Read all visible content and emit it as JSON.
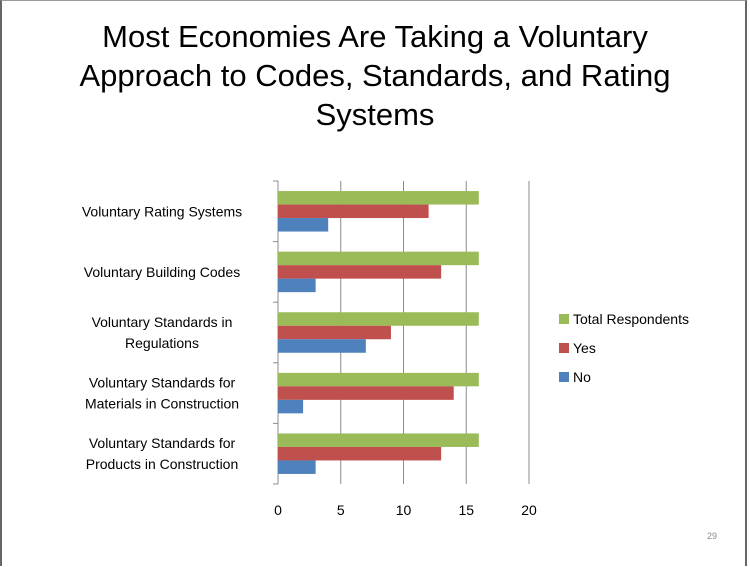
{
  "slide": {
    "title_line1": "Most Economies Are Taking a Voluntary",
    "title_line2": "Approach to Codes, Standards, and Rating",
    "title_line3": "Systems",
    "page_number": "29"
  },
  "chart_data": {
    "type": "bar",
    "orientation": "horizontal",
    "title": "",
    "xlabel": "",
    "ylabel": "",
    "xlim": [
      0,
      20
    ],
    "xticks": [
      0,
      5,
      10,
      15,
      20
    ],
    "grid": true,
    "legend_position": "right",
    "categories": [
      [
        "Voluntary Rating Systems"
      ],
      [
        "Voluntary Building Codes"
      ],
      [
        "Voluntary Standards in",
        "Regulations"
      ],
      [
        "Voluntary Standards for",
        "Materials in Construction"
      ],
      [
        "Voluntary Standards for",
        "Products in Construction"
      ]
    ],
    "series": [
      {
        "name": "Total Respondents",
        "color": "#9bbb59",
        "values": [
          16,
          16,
          16,
          16,
          16
        ]
      },
      {
        "name": "Yes",
        "color": "#c0504d",
        "values": [
          12,
          13,
          9,
          14,
          13
        ]
      },
      {
        "name": "No",
        "color": "#4f81bd",
        "values": [
          4,
          3,
          7,
          2,
          3
        ]
      }
    ]
  }
}
